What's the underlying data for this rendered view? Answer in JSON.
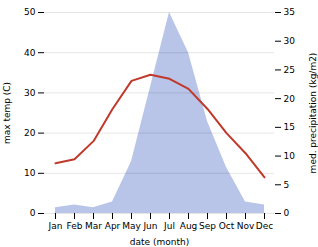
{
  "chart_data": {
    "type": "line",
    "categories": [
      "Jan",
      "Feb",
      "Mar",
      "Apr",
      "May",
      "Jun",
      "Jul",
      "Aug",
      "Sep",
      "Oct",
      "Nov",
      "Dec"
    ],
    "series": [
      {
        "type": "area",
        "axis": "y2",
        "color": "#b8c4e8",
        "values": [
          1.0,
          1.5,
          1.0,
          2.0,
          9.0,
          22.0,
          35.0,
          28.0,
          16.0,
          8.0,
          2.0,
          1.5
        ]
      },
      {
        "type": "line",
        "color": "#c0392b",
        "values": [
          12.5,
          13.5,
          18.0,
          26.0,
          33.0,
          34.5,
          33.5,
          31.0,
          26.0,
          20.0,
          15.0,
          9.0
        ]
      }
    ],
    "xlabel": "date (month)",
    "ylabel": "max temp (C)",
    "y2label": "med. precipitation (kg/m2)",
    "ylim": [
      0,
      50
    ],
    "yticks": [
      0,
      10,
      20,
      30,
      40,
      50
    ],
    "y2lim": [
      0,
      35
    ],
    "y2ticks": [
      0,
      5,
      10,
      15,
      20,
      25,
      30,
      35
    ],
    "grid": true
  }
}
